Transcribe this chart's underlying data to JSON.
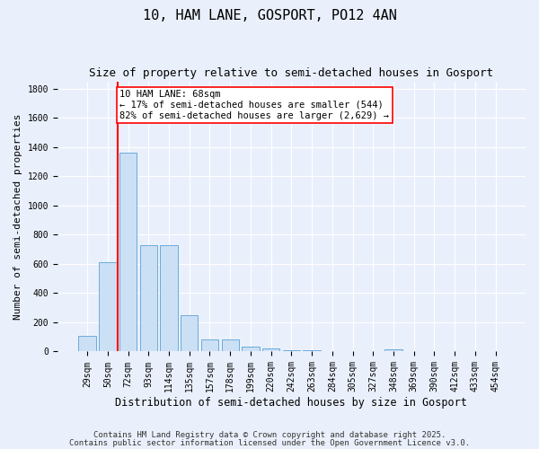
{
  "title1": "10, HAM LANE, GOSPORT, PO12 4AN",
  "title2": "Size of property relative to semi-detached houses in Gosport",
  "xlabel": "Distribution of semi-detached houses by size in Gosport",
  "ylabel": "Number of semi-detached properties",
  "categories": [
    "29sqm",
    "50sqm",
    "72sqm",
    "93sqm",
    "114sqm",
    "135sqm",
    "157sqm",
    "178sqm",
    "199sqm",
    "220sqm",
    "242sqm",
    "263sqm",
    "284sqm",
    "305sqm",
    "327sqm",
    "348sqm",
    "369sqm",
    "390sqm",
    "412sqm",
    "433sqm",
    "454sqm"
  ],
  "values": [
    110,
    610,
    1360,
    730,
    730,
    250,
    80,
    80,
    35,
    20,
    10,
    10,
    5,
    5,
    2,
    15,
    2,
    2,
    2,
    2,
    2
  ],
  "bar_color": "#cce0f5",
  "bar_edge_color": "#6aabdb",
  "vline_x": 1.5,
  "vline_color": "red",
  "annotation_text": "10 HAM LANE: 68sqm\n← 17% of semi-detached houses are smaller (544)\n82% of semi-detached houses are larger (2,629) →",
  "annotation_box_color": "white",
  "annotation_box_edge": "red",
  "ylim": [
    0,
    1850
  ],
  "yticks": [
    0,
    200,
    400,
    600,
    800,
    1000,
    1200,
    1400,
    1600,
    1800
  ],
  "background_color": "#eaf0fb",
  "footer1": "Contains HM Land Registry data © Crown copyright and database right 2025.",
  "footer2": "Contains public sector information licensed under the Open Government Licence v3.0.",
  "title1_fontsize": 11,
  "title2_fontsize": 9,
  "xlabel_fontsize": 8.5,
  "ylabel_fontsize": 8,
  "tick_fontsize": 7,
  "annotation_fontsize": 7.5,
  "footer_fontsize": 6.5
}
